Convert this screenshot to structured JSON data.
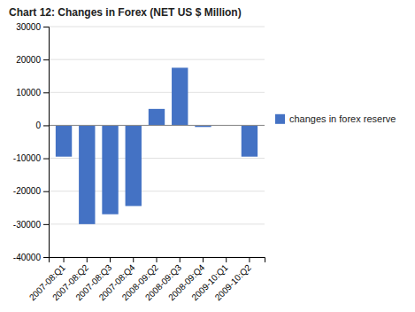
{
  "chart_data": {
    "type": "bar",
    "title": "Chart 12: Changes in Forex (NET US $ Million)",
    "categories": [
      "2007-08:Q1",
      "2007-08:Q2",
      "2007-08:Q3",
      "2007-08:Q4",
      "2008-09:Q2",
      "2008-09:Q3",
      "2008-09:Q4",
      "2009-10:Q1",
      "2009-10:Q2"
    ],
    "series": [
      {
        "name": "changes in forex reserve",
        "color": "#4472C4",
        "values": [
          -9500,
          -30000,
          -27000,
          -24500,
          5000,
          17500,
          -500,
          0,
          -9500
        ]
      }
    ],
    "ylim": [
      -40000,
      30000
    ],
    "yticks": [
      -40000,
      -30000,
      -20000,
      -10000,
      0,
      10000,
      20000,
      30000
    ],
    "grid": true,
    "legend": "right"
  }
}
